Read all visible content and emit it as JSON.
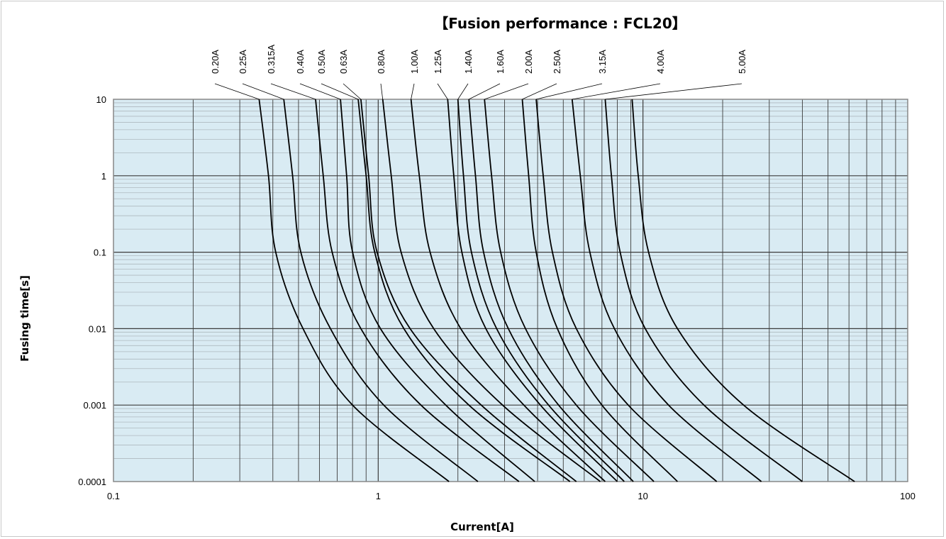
{
  "chart_data": {
    "type": "line",
    "title": "【Fusion performance : FCL20】",
    "xlabel": "Current[A]",
    "ylabel": "Fusing time[s]",
    "xscale": "log",
    "yscale": "log",
    "xlim": [
      0.1,
      100
    ],
    "ylim": [
      0.0001,
      10
    ],
    "x_ticks": [
      "0.1",
      "1",
      "10",
      "100"
    ],
    "y_ticks": [
      "10",
      "1",
      "0.1",
      "0.01",
      "0.001",
      "0.0001"
    ],
    "grid": true,
    "plot_background": "#d9ebf3",
    "line_color": "#000000",
    "series": [
      {
        "name": "0.20A",
        "points": [
          [
            0.355,
            10
          ],
          [
            0.385,
            1
          ],
          [
            0.41,
            0.1
          ],
          [
            0.52,
            0.01
          ],
          [
            0.8,
            0.001
          ],
          [
            1.85,
            0.0001
          ]
        ]
      },
      {
        "name": "0.25A",
        "points": [
          [
            0.44,
            10
          ],
          [
            0.475,
            1
          ],
          [
            0.51,
            0.1
          ],
          [
            0.66,
            0.01
          ],
          [
            1.05,
            0.001
          ],
          [
            2.38,
            0.0001
          ]
        ]
      },
      {
        "name": "0.315A",
        "points": [
          [
            0.58,
            10
          ],
          [
            0.62,
            1
          ],
          [
            0.67,
            0.1
          ],
          [
            0.86,
            0.01
          ],
          [
            1.45,
            0.001
          ],
          [
            3.4,
            0.0001
          ]
        ]
      },
      {
        "name": "0.40A",
        "points": [
          [
            0.72,
            10
          ],
          [
            0.76,
            1
          ],
          [
            0.8,
            0.1
          ],
          [
            1.02,
            0.01
          ],
          [
            1.8,
            0.001
          ],
          [
            3.9,
            0.0001
          ]
        ]
      },
      {
        "name": "0.50A",
        "points": [
          [
            0.84,
            10
          ],
          [
            0.9,
            1
          ],
          [
            0.97,
            0.1
          ],
          [
            1.25,
            0.01
          ],
          [
            2.2,
            0.001
          ],
          [
            5.3,
            0.0001
          ]
        ]
      },
      {
        "name": "0.63A",
        "points": [
          [
            0.86,
            10
          ],
          [
            0.92,
            1
          ],
          [
            0.99,
            0.1
          ],
          [
            1.32,
            0.01
          ],
          [
            2.45,
            0.001
          ],
          [
            5.6,
            0.0001
          ]
        ]
      },
      {
        "name": "0.80A",
        "points": [
          [
            1.04,
            10
          ],
          [
            1.12,
            1
          ],
          [
            1.22,
            0.1
          ],
          [
            1.62,
            0.01
          ],
          [
            2.95,
            0.001
          ],
          [
            6.9,
            0.0001
          ]
        ]
      },
      {
        "name": "1.00A",
        "points": [
          [
            1.33,
            10
          ],
          [
            1.43,
            1
          ],
          [
            1.57,
            0.1
          ],
          [
            2.05,
            0.01
          ],
          [
            3.55,
            0.001
          ],
          [
            7.2,
            0.0001
          ]
        ]
      },
      {
        "name": "1.25A",
        "points": [
          [
            1.83,
            10
          ],
          [
            1.93,
            1
          ],
          [
            2.07,
            0.1
          ],
          [
            2.55,
            0.01
          ],
          [
            4.1,
            0.001
          ],
          [
            8.0,
            0.0001
          ]
        ]
      },
      {
        "name": "1.40A",
        "points": [
          [
            2.0,
            10
          ],
          [
            2.1,
            1
          ],
          [
            2.25,
            0.1
          ],
          [
            2.8,
            0.01
          ],
          [
            4.4,
            0.001
          ],
          [
            8.5,
            0.0001
          ]
        ]
      },
      {
        "name": "1.60A",
        "points": [
          [
            2.2,
            10
          ],
          [
            2.33,
            1
          ],
          [
            2.5,
            0.1
          ],
          [
            3.1,
            0.01
          ],
          [
            4.8,
            0.001
          ],
          [
            9.2,
            0.0001
          ]
        ]
      },
      {
        "name": "2.00A",
        "points": [
          [
            2.52,
            10
          ],
          [
            2.68,
            1
          ],
          [
            2.9,
            0.1
          ],
          [
            3.6,
            0.01
          ],
          [
            5.6,
            0.001
          ],
          [
            11.0,
            0.0001
          ]
        ]
      },
      {
        "name": "2.50A",
        "points": [
          [
            3.5,
            10
          ],
          [
            3.7,
            1
          ],
          [
            3.95,
            0.1
          ],
          [
            4.75,
            0.01
          ],
          [
            7.0,
            0.001
          ],
          [
            13.5,
            0.0001
          ]
        ]
      },
      {
        "name": "3.15A",
        "points": [
          [
            3.95,
            10
          ],
          [
            4.2,
            1
          ],
          [
            4.55,
            0.1
          ],
          [
            5.6,
            0.01
          ],
          [
            8.8,
            0.001
          ],
          [
            19.0,
            0.0001
          ]
        ]
      },
      {
        "name": "4.00A",
        "points": [
          [
            5.4,
            10
          ],
          [
            5.8,
            1
          ],
          [
            6.3,
            0.1
          ],
          [
            7.8,
            0.01
          ],
          [
            12.5,
            0.001
          ],
          [
            28.0,
            0.0001
          ]
        ]
      },
      {
        "name": "5.00A",
        "points": [
          [
            7.2,
            10
          ],
          [
            7.6,
            1
          ],
          [
            8.2,
            0.1
          ],
          [
            10.2,
            0.01
          ],
          [
            17.0,
            0.001
          ],
          [
            40.0,
            0.0001
          ]
        ]
      },
      {
        "name": "",
        "points": [
          [
            9.1,
            10
          ],
          [
            9.6,
            1
          ],
          [
            10.5,
            0.1
          ],
          [
            13.5,
            0.01
          ],
          [
            24.0,
            0.001
          ],
          [
            63.0,
            0.0001
          ]
        ]
      }
    ]
  }
}
